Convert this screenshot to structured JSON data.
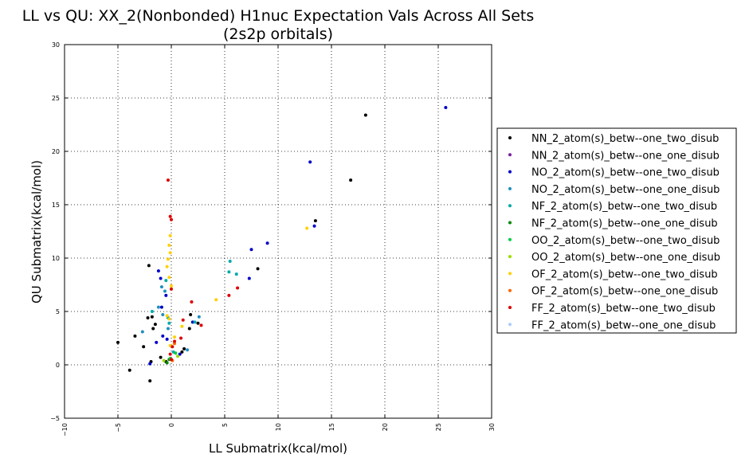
{
  "chart_data": {
    "type": "scatter",
    "title": "LL vs QU: XX_2(Nonbonded) H1nuc Expectation Vals Across All Sets",
    "subtitle": "(2s2p orbitals)",
    "xlabel": "LL Submatrix(kcal/mol)",
    "ylabel": "QU Submatrix(kcal/mol)",
    "xlim": [
      -10,
      30
    ],
    "ylim": [
      -5,
      30
    ],
    "xticks": [
      "−10",
      "−5",
      "0",
      "5",
      "10",
      "15",
      "20",
      "25",
      "30"
    ],
    "yticks": [
      "−5",
      "0",
      "5",
      "10",
      "15",
      "20",
      "25",
      "30"
    ],
    "grid": true,
    "legend_position": "right",
    "series": [
      {
        "name": "NN_2_atom(s)_betw--one_two_disub",
        "color": "#000000",
        "points": [
          [
            -5.0,
            2.1
          ],
          [
            -3.9,
            -0.5
          ],
          [
            -3.4,
            2.7
          ],
          [
            -2.6,
            1.7
          ],
          [
            -2.1,
            9.3
          ],
          [
            -2.2,
            4.4
          ],
          [
            -1.8,
            4.5
          ],
          [
            -1.7,
            3.4
          ],
          [
            -1.5,
            3.8
          ],
          [
            -1.9,
            0.3
          ],
          [
            -2.0,
            -1.5
          ],
          [
            -1.0,
            0.7
          ],
          [
            -0.5,
            0.3
          ],
          [
            1.0,
            1.2
          ],
          [
            1.2,
            1.5
          ],
          [
            1.7,
            3.4
          ],
          [
            1.8,
            4.7
          ],
          [
            2.5,
            3.9
          ],
          [
            8.1,
            9.0
          ],
          [
            13.5,
            13.5
          ],
          [
            16.8,
            17.3
          ],
          [
            18.2,
            23.4
          ]
        ]
      },
      {
        "name": "NN_2_atom(s)_betw--one_one_disub",
        "color": "#7a1fa2",
        "points": []
      },
      {
        "name": "NO_2_atom(s)_betw--one_two_disub",
        "color": "#0000cc",
        "points": [
          [
            -2.0,
            0.1
          ],
          [
            -1.2,
            8.8
          ],
          [
            -1.0,
            8.1
          ],
          [
            -0.5,
            6.5
          ],
          [
            -1.4,
            2.1
          ],
          [
            -0.8,
            2.7
          ],
          [
            -0.4,
            2.4
          ],
          [
            -0.9,
            5.4
          ],
          [
            0.8,
            1.0
          ],
          [
            2.0,
            4.0
          ],
          [
            7.3,
            8.1
          ],
          [
            7.5,
            10.8
          ],
          [
            9.0,
            11.4
          ],
          [
            13.0,
            19.0
          ],
          [
            13.4,
            13.0
          ],
          [
            25.7,
            24.1
          ]
        ]
      },
      {
        "name": "NO_2_atom(s)_betw--one_one_disub",
        "color": "#1f8fbf",
        "points": [
          [
            -0.9,
            7.3
          ],
          [
            -0.6,
            6.9
          ],
          [
            -0.3,
            3.4
          ],
          [
            -0.8,
            4.7
          ],
          [
            -1.2,
            5.4
          ],
          [
            -2.7,
            3.1
          ],
          [
            1.5,
            1.4
          ],
          [
            2.6,
            4.5
          ]
        ]
      },
      {
        "name": "NF_2_atom(s)_betw--one_two_disub",
        "color": "#00aaaa",
        "points": [
          [
            -1.8,
            5.0
          ],
          [
            -0.5,
            7.9
          ],
          [
            -0.3,
            4.4
          ],
          [
            0.2,
            1.2
          ],
          [
            5.5,
            9.7
          ],
          [
            5.4,
            8.7
          ],
          [
            6.1,
            8.5
          ],
          [
            2.2,
            4.0
          ],
          [
            -0.2,
            3.9
          ]
        ]
      },
      {
        "name": "NF_2_atom(s)_betw--one_one_disub",
        "color": "#008800",
        "points": [
          [
            -0.4,
            0.2
          ],
          [
            -0.2,
            0.5
          ]
        ]
      },
      {
        "name": "OO_2_atom(s)_betw--one_two_disub",
        "color": "#00cc44",
        "points": [
          [
            0.4,
            1.1
          ],
          [
            -0.1,
            0.6
          ]
        ]
      },
      {
        "name": "OO_2_atom(s)_betw--one_one_disub",
        "color": "#99dd00",
        "points": [
          [
            -0.7,
            0.4
          ],
          [
            0.6,
            0.8
          ]
        ]
      },
      {
        "name": "OF_2_atom(s)_betw--one_two_disub",
        "color": "#ffd000",
        "points": [
          [
            -0.1,
            12.1
          ],
          [
            -0.2,
            11.2
          ],
          [
            -0.3,
            9.9
          ],
          [
            -0.1,
            10.5
          ],
          [
            -0.4,
            9.2
          ],
          [
            -0.2,
            8.2
          ],
          [
            0.0,
            7.4
          ],
          [
            -0.4,
            4.6
          ],
          [
            -0.2,
            4.3
          ],
          [
            4.2,
            6.1
          ],
          [
            12.7,
            12.8
          ],
          [
            1.0,
            3.6
          ],
          [
            0.3,
            2.6
          ],
          [
            -0.1,
            1.8
          ]
        ]
      },
      {
        "name": "OF_2_atom(s)_betw--one_one_disub",
        "color": "#ff6600",
        "points": [
          [
            0.1,
            0.4
          ],
          [
            0.3,
            2.0
          ]
        ]
      },
      {
        "name": "FF_2_atom(s)_betw--one_two_disub",
        "color": "#dd0000",
        "points": [
          [
            -0.3,
            17.3
          ],
          [
            -0.1,
            13.9
          ],
          [
            0.0,
            13.6
          ],
          [
            0.0,
            7.1
          ],
          [
            1.1,
            4.2
          ],
          [
            1.9,
            5.9
          ],
          [
            2.8,
            3.7
          ],
          [
            5.4,
            6.5
          ],
          [
            6.2,
            7.2
          ],
          [
            0.3,
            2.2
          ],
          [
            0.1,
            1.7
          ],
          [
            -0.1,
            1.0
          ],
          [
            0.0,
            0.5
          ],
          [
            0.9,
            2.5
          ]
        ]
      },
      {
        "name": "FF_2_atom(s)_betw--one_one_disub",
        "color": "#aaccff",
        "points": []
      }
    ]
  }
}
